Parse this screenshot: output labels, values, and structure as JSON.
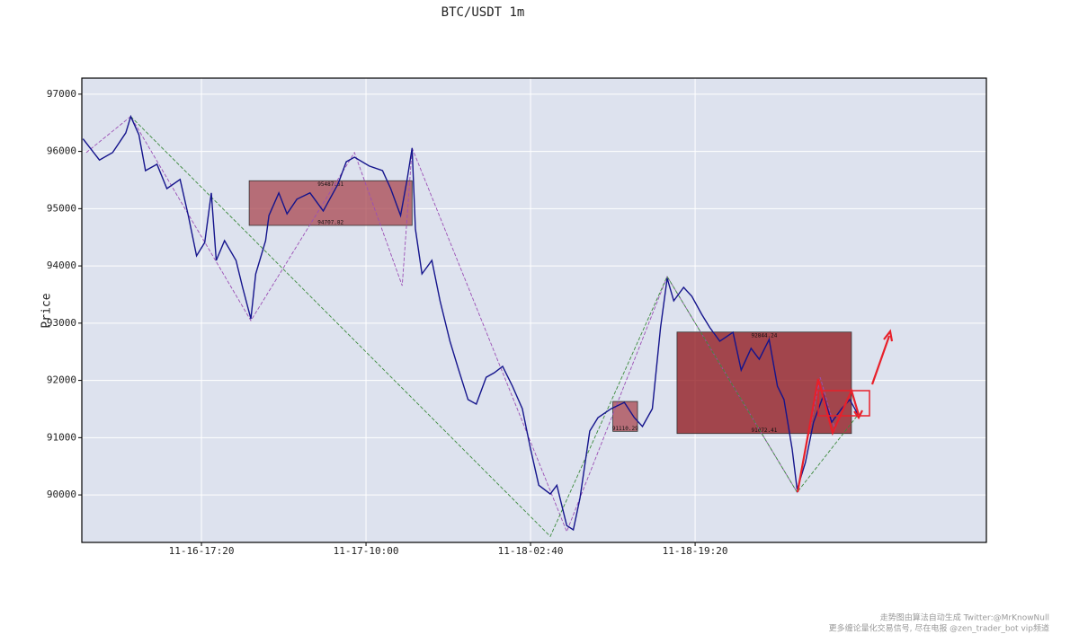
{
  "chart_data": {
    "type": "line",
    "title": "BTC/USDT 1m",
    "y_label": "Price",
    "xlim": [
      "11-16-05:13",
      "11-20-00:50"
    ],
    "ylim": [
      89170,
      97280
    ],
    "xticks": [
      "11-16-17:20",
      "11-17-10:00",
      "11-18-02:40",
      "11-18-19:20"
    ],
    "yticks": [
      90000,
      91000,
      92000,
      93000,
      94000,
      95000,
      96000,
      97000
    ],
    "grid": true,
    "series": [
      {
        "color": "#9b4fb5",
        "style": "dashed",
        "x": [
          "11-16-05:40",
          "11-16-10:10",
          "11-16-22:20",
          "11-17-08:50",
          "11-17-13:40",
          "11-17-14:40",
          "11-18-06:20",
          "11-18-16:30",
          "11-19-05:40",
          "11-19-08:00",
          "11-19-09:30",
          "11-19-11:10"
        ],
        "values": [
          95980,
          96610,
          93045,
          95980,
          93655,
          96060,
          89360,
          93815,
          90045,
          92055,
          91145,
          91820
        ]
      },
      {
        "color": "#3c8a3c",
        "style": "dashed",
        "x": [
          "11-16-10:10",
          "11-18-04:40",
          "11-18-16:30",
          "11-19-05:40",
          "11-19-11:50"
        ],
        "values": [
          96610,
          89275,
          93815,
          90045,
          91400
        ]
      },
      {
        "color": "#14148c",
        "style": "solid",
        "x": [
          "11-16-05:20",
          "11-16-07:00",
          "11-16-08:20",
          "11-16-09:40",
          "11-16-10:10",
          "11-16-11:00",
          "11-16-11:40",
          "11-16-12:50",
          "11-16-13:50",
          "11-16-15:10",
          "11-16-16:00",
          "11-16-16:50",
          "11-16-17:40",
          "11-16-18:20",
          "11-16-18:50",
          "11-16-19:40",
          "11-16-20:50",
          "11-16-21:30",
          "11-16-22:20",
          "11-16-22:50",
          "11-16-23:50",
          "11-17-00:10",
          "11-17-01:10",
          "11-17-02:00",
          "11-17-03:00",
          "11-17-04:20",
          "11-17-05:40",
          "11-17-07:10",
          "11-17-08:00",
          "11-17-08:50",
          "11-17-10:20",
          "11-17-11:40",
          "11-17-12:30",
          "11-17-13:30",
          "11-17-14:10",
          "11-17-14:40",
          "11-17-15:00",
          "11-17-15:40",
          "11-17-16:40",
          "11-17-17:30",
          "11-17-18:30",
          "11-17-19:20",
          "11-17-20:20",
          "11-17-21:10",
          "11-17-22:10",
          "11-17-23:00",
          "11-17-23:50",
          "11-18-00:50",
          "11-18-01:50",
          "11-18-02:40",
          "11-18-03:30",
          "11-18-04:40",
          "11-18-05:20",
          "11-18-06:20",
          "11-18-07:00",
          "11-18-07:40",
          "11-18-08:40",
          "11-18-09:30",
          "11-18-10:50",
          "11-18-12:10",
          "11-18-13:10",
          "11-18-14:00",
          "11-18-15:00",
          "11-18-15:50",
          "11-18-16:30",
          "11-18-17:10",
          "11-18-18:10",
          "11-18-19:00",
          "11-18-20:00",
          "11-18-20:50",
          "11-18-21:50",
          "11-18-23:10",
          "11-19-00:00",
          "11-19-01:00",
          "11-19-01:50",
          "11-19-02:50",
          "11-19-03:40",
          "11-19-04:20",
          "11-19-05:10",
          "11-19-05:40",
          "11-19-06:30",
          "11-19-07:20",
          "11-19-08:20",
          "11-19-09:10",
          "11-19-10:10",
          "11-19-11:00",
          "11-19-11:50"
        ],
        "values": [
          96220,
          95850,
          95980,
          96325,
          96610,
          96290,
          95665,
          95775,
          95350,
          95510,
          94880,
          94175,
          94410,
          95275,
          94095,
          94440,
          94095,
          93625,
          93075,
          93860,
          94440,
          94880,
          95275,
          94910,
          95165,
          95275,
          94960,
          95430,
          95820,
          95900,
          95745,
          95665,
          95350,
          94880,
          95510,
          96060,
          94645,
          93860,
          94095,
          93390,
          92685,
          92215,
          91665,
          91585,
          92055,
          92135,
          92245,
          91900,
          91505,
          90800,
          90170,
          90015,
          90170,
          89465,
          89390,
          89940,
          91115,
          91350,
          91505,
          91615,
          91350,
          91195,
          91505,
          92920,
          93785,
          93390,
          93625,
          93470,
          93155,
          92920,
          92685,
          92840,
          92180,
          92560,
          92370,
          92715,
          91900,
          91665,
          90800,
          90095,
          90565,
          91270,
          91740,
          91270,
          91505,
          91665,
          91400
        ]
      }
    ],
    "zones": [
      {
        "x0": "11-16-22:10",
        "x1": "11-17-14:40",
        "top": 95487.61,
        "bottom": 94707.82,
        "color": "#a8454f",
        "labeled": [
          "top",
          "bottom"
        ]
      },
      {
        "x0": "11-18-11:00",
        "x1": "11-18-13:30",
        "top": 91632,
        "bottom": 91110.29,
        "color": "#a8454f",
        "labeled": [
          "bottom"
        ]
      },
      {
        "x0": "11-18-17:30",
        "x1": "11-19-11:10",
        "top": 92844.24,
        "bottom": 91072.41,
        "color": "#8e1016",
        "labeled": [
          "top",
          "bottom"
        ]
      }
    ]
  },
  "watermark": [
    "走势图由算法自动生成  Twitter:@MrKnowNull",
    "更多缠论量化交易信号, 尽在电报 @zen_trader_bot vip频道"
  ]
}
